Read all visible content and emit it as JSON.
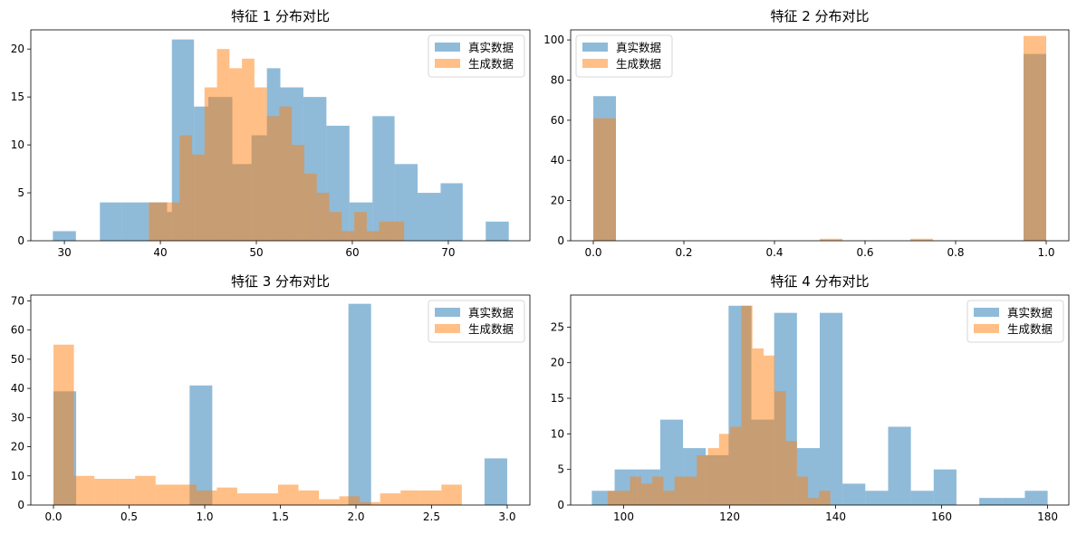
{
  "figure": {
    "layout": "2x2 histograms"
  },
  "colors": {
    "real": "#1f77b4",
    "gen": "#ff7f0e",
    "alpha": 0.5
  },
  "legend": {
    "real": "真实数据",
    "gen": "生成数据"
  },
  "chart_data": [
    {
      "type": "bar",
      "title": "特征 1 分布对比",
      "xlim": [
        26.5,
        78.5
      ],
      "ylim": [
        0,
        22
      ],
      "xticks": [
        30,
        40,
        50,
        60,
        70
      ],
      "xtick_labels": [
        "30",
        "40",
        "50",
        "60",
        "70"
      ],
      "yticks": [
        0,
        5,
        10,
        15,
        20
      ],
      "ytick_labels": [
        "0",
        "5",
        "10",
        "15",
        "20"
      ],
      "legend_position": "top-right",
      "series": [
        {
          "name": "真实数据",
          "bins": [
            [
              28.8,
              31.2,
              1
            ],
            [
              33.7,
              36.0,
              4
            ],
            [
              36.0,
              38.8,
              4
            ],
            [
              38.8,
              40.7,
              4
            ],
            [
              40.7,
              41.2,
              3
            ],
            [
              41.2,
              43.5,
              21
            ],
            [
              43.5,
              45.0,
              14
            ],
            [
              45.0,
              47.5,
              15
            ],
            [
              47.5,
              49.5,
              8
            ],
            [
              49.5,
              51.1,
              11
            ],
            [
              51.1,
              52.5,
              18
            ],
            [
              52.5,
              54.9,
              16
            ],
            [
              54.9,
              57.3,
              15
            ],
            [
              57.3,
              59.7,
              12
            ],
            [
              59.7,
              62.1,
              4
            ],
            [
              62.1,
              64.4,
              13
            ],
            [
              64.4,
              66.8,
              8
            ],
            [
              66.8,
              69.2,
              5
            ],
            [
              69.2,
              71.5,
              6
            ],
            [
              71.5,
              73.9,
              0
            ],
            [
              73.9,
              76.3,
              2
            ]
          ]
        },
        {
          "name": "生成数据",
          "bins": [
            [
              38.8,
              40.7,
              4
            ],
            [
              40.7,
              42.0,
              4
            ],
            [
              42.0,
              43.3,
              11
            ],
            [
              43.3,
              44.6,
              9
            ],
            [
              44.6,
              45.9,
              16
            ],
            [
              45.9,
              47.2,
              20
            ],
            [
              47.2,
              48.5,
              18
            ],
            [
              48.5,
              49.8,
              19
            ],
            [
              49.8,
              51.1,
              16
            ],
            [
              51.1,
              52.4,
              13
            ],
            [
              52.4,
              53.7,
              14
            ],
            [
              53.7,
              55.0,
              10
            ],
            [
              55.0,
              56.3,
              7
            ],
            [
              56.3,
              57.6,
              5
            ],
            [
              57.6,
              58.9,
              3
            ],
            [
              58.9,
              60.2,
              1
            ],
            [
              60.2,
              61.5,
              3
            ],
            [
              61.5,
              62.8,
              1
            ],
            [
              62.8,
              64.1,
              2
            ],
            [
              64.1,
              65.4,
              2
            ],
            [
              65.4,
              66.7,
              0
            ]
          ]
        }
      ]
    },
    {
      "type": "bar",
      "title": "特征 2 分布对比",
      "xlim": [
        -0.05,
        1.05
      ],
      "ylim": [
        0,
        105
      ],
      "xticks": [
        0.0,
        0.2,
        0.4,
        0.6,
        0.8,
        1.0
      ],
      "xtick_labels": [
        "0.0",
        "0.2",
        "0.4",
        "0.6",
        "0.8",
        "1.0"
      ],
      "yticks": [
        0,
        20,
        40,
        60,
        80,
        100
      ],
      "ytick_labels": [
        "0",
        "20",
        "40",
        "60",
        "80",
        "100"
      ],
      "legend_position": "top-left",
      "series": [
        {
          "name": "真实数据",
          "bins": [
            [
              0.0,
              0.05,
              72
            ],
            [
              0.95,
              1.0,
              93
            ]
          ]
        },
        {
          "name": "生成数据",
          "bins": [
            [
              0.0,
              0.05,
              61
            ],
            [
              0.5,
              0.55,
              1
            ],
            [
              0.7,
              0.75,
              1
            ],
            [
              0.95,
              1.0,
              102
            ]
          ]
        }
      ]
    },
    {
      "type": "bar",
      "title": "特征 3 分布对比",
      "xlim": [
        -0.15,
        3.15
      ],
      "ylim": [
        0,
        72
      ],
      "xticks": [
        0.0,
        0.5,
        1.0,
        1.5,
        2.0,
        2.5,
        3.0
      ],
      "xtick_labels": [
        "0.0",
        "0.5",
        "1.0",
        "1.5",
        "2.0",
        "2.5",
        "3.0"
      ],
      "yticks": [
        0,
        10,
        20,
        30,
        40,
        50,
        60,
        70
      ],
      "ytick_labels": [
        "0",
        "10",
        "20",
        "30",
        "40",
        "50",
        "60",
        "70"
      ],
      "legend_position": "top-right",
      "series": [
        {
          "name": "真实数据",
          "bins": [
            [
              0.0,
              0.15,
              39
            ],
            [
              0.9,
              1.05,
              41
            ],
            [
              1.95,
              2.1,
              69
            ],
            [
              2.85,
              3.0,
              16
            ]
          ]
        },
        {
          "name": "生成数据",
          "bins": [
            [
              0.0,
              0.135,
              55
            ],
            [
              0.135,
              0.27,
              10
            ],
            [
              0.27,
              0.405,
              9
            ],
            [
              0.405,
              0.54,
              9
            ],
            [
              0.54,
              0.675,
              10
            ],
            [
              0.675,
              0.81,
              7
            ],
            [
              0.81,
              0.945,
              7
            ],
            [
              0.945,
              1.08,
              5
            ],
            [
              1.08,
              1.215,
              6
            ],
            [
              1.215,
              1.35,
              4
            ],
            [
              1.35,
              1.485,
              4
            ],
            [
              1.485,
              1.62,
              7
            ],
            [
              1.62,
              1.755,
              5
            ],
            [
              1.755,
              1.89,
              2
            ],
            [
              1.89,
              2.025,
              3
            ],
            [
              2.025,
              2.16,
              1
            ],
            [
              2.16,
              2.295,
              4
            ],
            [
              2.295,
              2.43,
              5
            ],
            [
              2.43,
              2.565,
              5
            ],
            [
              2.565,
              2.7,
              7
            ]
          ]
        }
      ]
    },
    {
      "type": "bar",
      "title": "特征 4 分布对比",
      "xlim": [
        90,
        184
      ],
      "ylim": [
        0,
        29.5
      ],
      "xticks": [
        100,
        120,
        140,
        160,
        180
      ],
      "xtick_labels": [
        "100",
        "120",
        "140",
        "160",
        "180"
      ],
      "yticks": [
        0,
        5,
        10,
        15,
        20,
        25
      ],
      "ytick_labels": [
        "0",
        "5",
        "10",
        "15",
        "20",
        "25"
      ],
      "legend_position": "top-right",
      "series": [
        {
          "name": "真实数据",
          "bins": [
            [
              94.0,
              98.3,
              2
            ],
            [
              98.3,
              102.6,
              5
            ],
            [
              102.6,
              106.9,
              5
            ],
            [
              106.9,
              111.2,
              12
            ],
            [
              111.2,
              115.5,
              8
            ],
            [
              115.5,
              119.8,
              7
            ],
            [
              119.8,
              124.1,
              28
            ],
            [
              124.1,
              128.4,
              12
            ],
            [
              128.4,
              132.7,
              27
            ],
            [
              132.7,
              137.0,
              8
            ],
            [
              137.0,
              141.3,
              27
            ],
            [
              141.3,
              145.6,
              3
            ],
            [
              145.6,
              149.9,
              2
            ],
            [
              149.9,
              154.2,
              11
            ],
            [
              154.2,
              158.5,
              2
            ],
            [
              158.5,
              162.8,
              5
            ],
            [
              162.8,
              167.1,
              0
            ],
            [
              167.1,
              171.4,
              1
            ],
            [
              171.4,
              175.7,
              1
            ],
            [
              175.7,
              180.0,
              2
            ]
          ]
        },
        {
          "name": "生成数据",
          "bins": [
            [
              97.0,
              99.1,
              2
            ],
            [
              99.1,
              101.2,
              2
            ],
            [
              101.2,
              103.3,
              4
            ],
            [
              103.3,
              105.4,
              3
            ],
            [
              105.4,
              107.5,
              4
            ],
            [
              107.5,
              109.6,
              2
            ],
            [
              109.6,
              111.7,
              4
            ],
            [
              111.7,
              113.8,
              4
            ],
            [
              113.8,
              115.9,
              7
            ],
            [
              115.9,
              118.0,
              8
            ],
            [
              118.0,
              120.1,
              10
            ],
            [
              120.1,
              122.2,
              11
            ],
            [
              122.2,
              124.3,
              28
            ],
            [
              124.3,
              126.4,
              22
            ],
            [
              126.4,
              128.5,
              21
            ],
            [
              128.5,
              130.6,
              16
            ],
            [
              130.6,
              132.7,
              9
            ],
            [
              132.7,
              134.8,
              4
            ],
            [
              134.8,
              136.9,
              1
            ],
            [
              136.9,
              139.0,
              2
            ]
          ]
        }
      ]
    }
  ]
}
